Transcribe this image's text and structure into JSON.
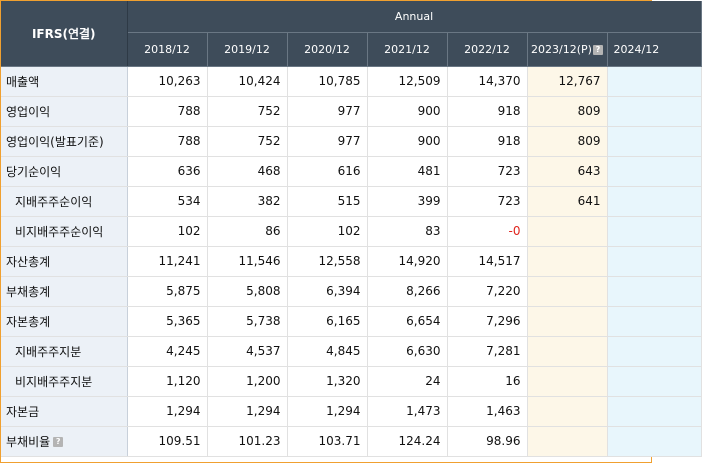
{
  "header": {
    "corner_label": "IFRS(연결)",
    "group_label": "Annual",
    "periods": [
      "2018/12",
      "2019/12",
      "2020/12",
      "2021/12",
      "2022/12",
      "2023/12(P)",
      "2024/12"
    ],
    "help_glyph": "?"
  },
  "rows": [
    {
      "label": "매출액",
      "values": [
        "10,263",
        "10,424",
        "10,785",
        "12,509",
        "14,370",
        "12,767",
        ""
      ]
    },
    {
      "label": "영업이익",
      "values": [
        "788",
        "752",
        "977",
        "900",
        "918",
        "809",
        ""
      ]
    },
    {
      "label": "영업이익(발표기준)",
      "values": [
        "788",
        "752",
        "977",
        "900",
        "918",
        "809",
        ""
      ]
    },
    {
      "label": "당기순이익",
      "values": [
        "636",
        "468",
        "616",
        "481",
        "723",
        "643",
        ""
      ]
    },
    {
      "label": "지배주주순이익",
      "values": [
        "534",
        "382",
        "515",
        "399",
        "723",
        "641",
        ""
      ]
    },
    {
      "label": "비지배주주순이익",
      "values": [
        "102",
        "86",
        "102",
        "83",
        "-0",
        "",
        ""
      ]
    },
    {
      "label": "자산총계",
      "values": [
        "11,241",
        "11,546",
        "12,558",
        "14,920",
        "14,517",
        "",
        ""
      ]
    },
    {
      "label": "부채총계",
      "values": [
        "5,875",
        "5,808",
        "6,394",
        "8,266",
        "7,220",
        "",
        ""
      ]
    },
    {
      "label": "자본총계",
      "values": [
        "5,365",
        "5,738",
        "6,165",
        "6,654",
        "7,296",
        "",
        ""
      ]
    },
    {
      "label": "지배주주지분",
      "values": [
        "4,245",
        "4,537",
        "4,845",
        "6,630",
        "7,281",
        "",
        ""
      ]
    },
    {
      "label": "비지배주주지분",
      "values": [
        "1,120",
        "1,200",
        "1,320",
        "24",
        "16",
        "",
        ""
      ]
    },
    {
      "label": "자본금",
      "values": [
        "1,294",
        "1,294",
        "1,294",
        "1,473",
        "1,463",
        "",
        ""
      ]
    },
    {
      "label": "부채비율",
      "values": [
        "109.51",
        "101.23",
        "103.71",
        "124.24",
        "98.96",
        "",
        ""
      ]
    }
  ],
  "colors": {
    "header_bg": "#3e4c5a",
    "label_bg": "#ecf1f7",
    "projection_bg": "#fdf7e8",
    "future_bg": "#e8f6fc",
    "negative": "#e0251e",
    "frame_border": "#f0a030"
  }
}
